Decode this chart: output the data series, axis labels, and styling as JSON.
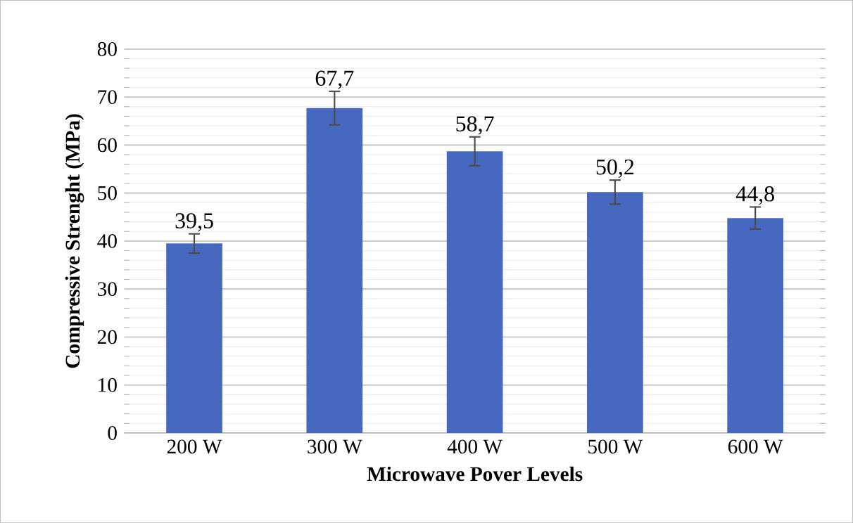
{
  "chart_data": {
    "type": "bar",
    "xlabel": "Microwave Pover Levels",
    "ylabel": "Compressive Strenght (MPa)",
    "categories": [
      "200 W",
      "300 W",
      "400 W",
      "500 W",
      "600 W"
    ],
    "values": [
      39.5,
      67.7,
      58.7,
      50.2,
      44.8
    ],
    "errors": [
      2,
      3.5,
      3,
      2.5,
      2.3
    ],
    "value_labels": [
      "39,5",
      "67,7",
      "58,7",
      "50,2",
      "44,8"
    ],
    "color": "#4668bf",
    "ylim": [
      0,
      80
    ],
    "yticks": [
      0,
      10,
      20,
      30,
      40,
      50,
      60,
      70,
      80
    ],
    "grid": "y"
  }
}
